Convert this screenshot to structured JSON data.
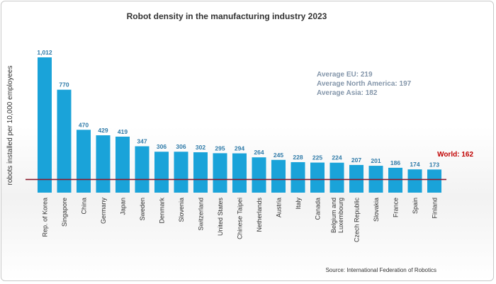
{
  "chart_data": {
    "type": "bar",
    "title": "Robot density in the manufacturing industry 2023",
    "ylabel": "robots installed per 10,000 employees",
    "categories": [
      [
        "Rep. of Korea"
      ],
      [
        "Singapore"
      ],
      [
        "China"
      ],
      [
        "Germany"
      ],
      [
        "Japan"
      ],
      [
        "Sweden"
      ],
      [
        "Denmark"
      ],
      [
        "Slovenia"
      ],
      [
        "Switzerland"
      ],
      [
        "United States"
      ],
      [
        "Chinese Taipei"
      ],
      [
        "Netherlands"
      ],
      [
        "Austria"
      ],
      [
        "Italy"
      ],
      [
        "Canada"
      ],
      [
        "Belgium and",
        "Luxembourg"
      ],
      [
        "Czech Republic"
      ],
      [
        "Slovakia"
      ],
      [
        "France"
      ],
      [
        "Spain"
      ],
      [
        "Finland"
      ]
    ],
    "values": [
      1012,
      770,
      470,
      429,
      419,
      347,
      306,
      306,
      302,
      295,
      294,
      264,
      245,
      228,
      225,
      224,
      207,
      201,
      186,
      174,
      173
    ],
    "value_labels": [
      "1,012",
      "770",
      "470",
      "429",
      "419",
      "347",
      "306",
      "306",
      "302",
      "295",
      "294",
      "264",
      "245",
      "228",
      "225",
      "224",
      "207",
      "201",
      "186",
      "174",
      "173"
    ],
    "reference_line": {
      "label": "World: 162",
      "value": 162,
      "color": "#8b1a2b"
    },
    "annotations": [
      "Average EU: 219",
      "Average North America: 197",
      "Average Asia: 182"
    ],
    "source": "Source: International Federation of Robotics",
    "bar_color": "#1aa3d9",
    "grid": false
  }
}
